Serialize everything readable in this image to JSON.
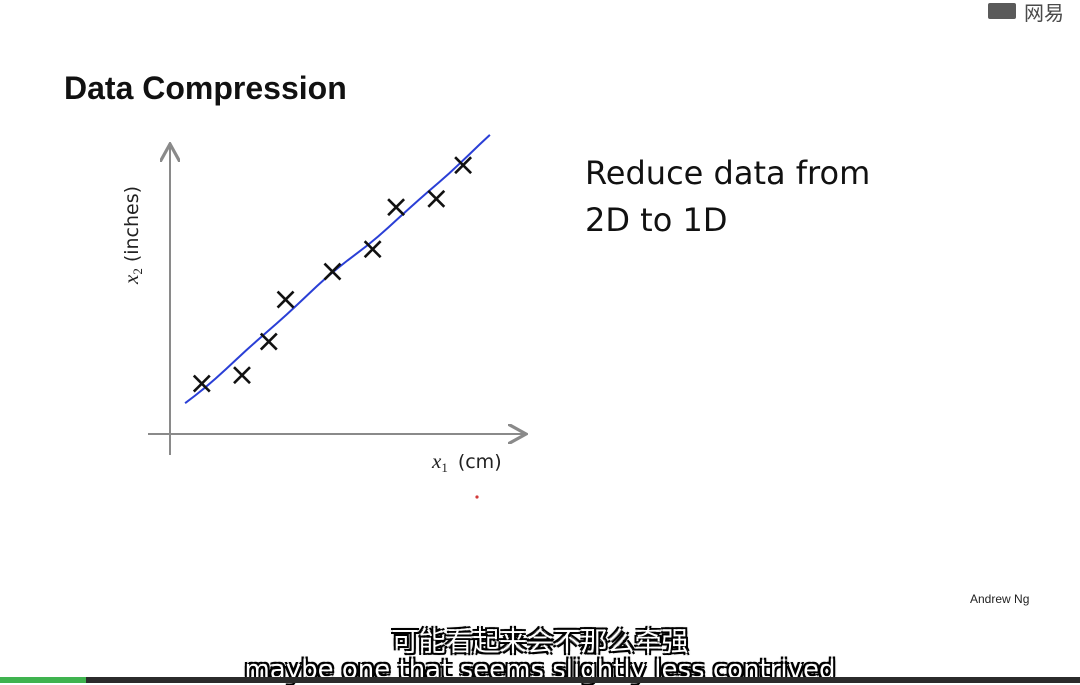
{
  "corner": {
    "logo_text": "网易"
  },
  "slide": {
    "title": "Data Compression",
    "side_text_line1": "Reduce data from",
    "side_text_line2": "2D to 1D",
    "author": "Andrew Ng"
  },
  "chart_data": {
    "type": "scatter",
    "title": "",
    "xlabel_var": "x",
    "xlabel_sub": "1",
    "xlabel_unit": "(cm)",
    "ylabel_var": "x",
    "ylabel_sub": "2",
    "ylabel_unit": "(inches)",
    "grid": false,
    "xlim": [
      0,
      10
    ],
    "ylim": [
      0,
      10
    ],
    "points": [
      {
        "x": 0.8,
        "y": 1.3
      },
      {
        "x": 2.0,
        "y": 1.6
      },
      {
        "x": 2.8,
        "y": 2.8
      },
      {
        "x": 3.3,
        "y": 4.3
      },
      {
        "x": 4.7,
        "y": 5.3
      },
      {
        "x": 5.9,
        "y": 6.1
      },
      {
        "x": 6.6,
        "y": 7.6
      },
      {
        "x": 7.8,
        "y": 7.9
      },
      {
        "x": 8.6,
        "y": 9.1
      }
    ],
    "fit_line": {
      "color": "#2a3fd6",
      "from": {
        "x": 0.3,
        "y": 0.6
      },
      "to": {
        "x": 9.4,
        "y": 10.1
      }
    },
    "marker_color": "#111111",
    "axis_color": "#8a8a8a"
  },
  "subtitles": {
    "chinese": "可能看起来会不那么牵强",
    "english": "maybe one that seems slightly less contrived"
  },
  "player": {
    "progress": 0.08,
    "progress_color": "#3fb34f"
  }
}
